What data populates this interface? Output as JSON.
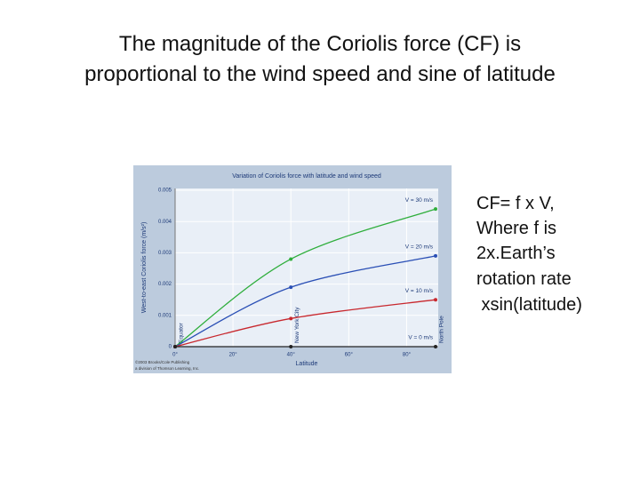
{
  "title_lines": [
    "The magnitude of the Coriolis force (CF) is",
    "proportional to the wind speed and sine of latitude"
  ],
  "side_text": [
    "CF= f x V,",
    "Where f is",
    "2x.Earth’s",
    "rotation rate",
    " xsin(latitude)"
  ],
  "chart_data": {
    "type": "line",
    "title": "Variation of Coriolis force with latitude and wind speed",
    "x_label": "Latitude",
    "y_label": "West-to-east Coriolis force (m/s²)",
    "x": [
      0,
      40,
      90
    ],
    "xlim": [
      0,
      90
    ],
    "xticks": [
      {
        "value": 0,
        "label": "0°"
      },
      {
        "value": 20,
        "label": "20°"
      },
      {
        "value": 40,
        "label": "40°"
      },
      {
        "value": 60,
        "label": "60°"
      },
      {
        "value": 80,
        "label": "80°"
      }
    ],
    "ylim": [
      0,
      0.005
    ],
    "yticks": [
      0,
      0.001,
      0.002,
      0.003,
      0.004,
      0.005
    ],
    "grid": true,
    "series": [
      {
        "name": "V = 30 m/s",
        "color": "#2fae3c",
        "values": [
          0,
          0.0028,
          0.0044
        ]
      },
      {
        "name": "V = 20 m/s",
        "color": "#2a4fb5",
        "values": [
          0,
          0.0019,
          0.0029
        ]
      },
      {
        "name": "V = 10 m/s",
        "color": "#c8282e",
        "values": [
          0,
          0.0009,
          0.0015
        ]
      },
      {
        "name": "V = 0 m/s",
        "color": "#222222",
        "values": [
          0,
          0,
          0
        ]
      }
    ],
    "annotations": [
      {
        "text": "Equator",
        "x": 0
      },
      {
        "text": "New York City",
        "x": 40
      },
      {
        "text": "North Pole",
        "x": 90
      }
    ],
    "credit": [
      "©2003 Brooks/Cole Publishing",
      "a division of Thomson Learning, Inc."
    ]
  }
}
